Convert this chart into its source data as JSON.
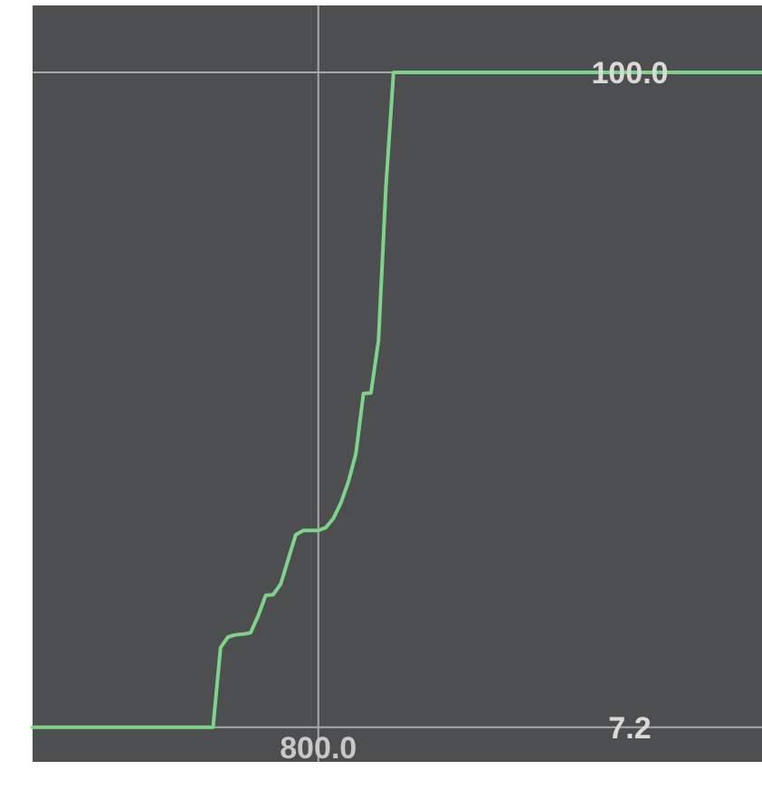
{
  "chart_data": {
    "type": "line",
    "categories": [
      null,
      null,
      null,
      null,
      null,
      null,
      null,
      null,
      null,
      null,
      null,
      null,
      null,
      null,
      null,
      null,
      null,
      null,
      null,
      null,
      null,
      null,
      null,
      null,
      null,
      null,
      null,
      null,
      null,
      null,
      null,
      null,
      null,
      null,
      null,
      null,
      null,
      null,
      "800.0",
      null,
      null,
      null,
      null,
      null,
      null,
      null,
      null,
      null,
      null,
      null,
      null,
      null,
      null,
      null,
      null,
      null,
      null,
      null,
      null,
      null,
      null,
      null,
      null,
      null,
      null,
      null,
      null,
      null,
      null,
      null,
      null,
      null,
      null,
      null,
      null,
      null,
      null,
      null,
      null,
      null,
      null,
      null,
      null,
      null,
      null,
      null,
      null,
      null,
      null,
      null,
      null,
      null,
      null,
      null,
      null,
      null,
      null,
      null
    ],
    "series": [
      {
        "color": "#7fd28a",
        "values": [
          7.2,
          7.2,
          7.2,
          7.2,
          7.2,
          7.2,
          7.2,
          7.2,
          7.2,
          7.2,
          7.2,
          7.2,
          7.2,
          7.2,
          7.2,
          7.2,
          7.2,
          7.2,
          7.2,
          7.2,
          7.2,
          7.2,
          7.2,
          7.2,
          7.2,
          18.5,
          20.0,
          20.3,
          20.4,
          20.6,
          23.0,
          25.9,
          26.0,
          27.5,
          31.0,
          34.5,
          35.1,
          35.1,
          35.1,
          35.5,
          36.8,
          39.0,
          42.0,
          46.0,
          54.5,
          54.6,
          62.0,
          84.0,
          100,
          100,
          100,
          100,
          100,
          100,
          100,
          100,
          100,
          100,
          100,
          100,
          100,
          100,
          100,
          100,
          100,
          100,
          100,
          100,
          100,
          100,
          100,
          100,
          100,
          100,
          100,
          100,
          100,
          100,
          100,
          100,
          100,
          100,
          100,
          100,
          100,
          100,
          100,
          100,
          100,
          100,
          100,
          100,
          100,
          100,
          100,
          100,
          100,
          100
        ]
      }
    ],
    "ylim": [
      2.3,
      109.5
    ],
    "yticks": [
      7.2,
      {
        "value": 100,
        "label": "100.0"
      }
    ],
    "grid": true,
    "marker": "none",
    "line_style": "solid"
  }
}
